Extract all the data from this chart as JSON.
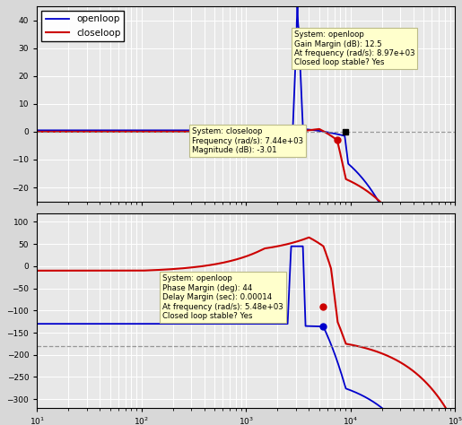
{
  "fig_width": 5.15,
  "fig_height": 4.74,
  "dpi": 100,
  "bg_color": "#d8d8d8",
  "plot_bg_color": "#e8e8e8",
  "grid_color": "#ffffff",
  "openloop_color": "#0000cc",
  "closeloop_color": "#cc0000",
  "legend_labels": [
    "openloop",
    "closeloop"
  ],
  "annotation_mag_ol": "System: openloop\nGain Margin (dB): 12.5\nAt frequency (rad/s): 8.97e+03\nClosed loop stable? Yes",
  "annotation_mag_cl": "System: closeloop\nFrequency (rad/s): 7.44e+03\nMagnitude (dB): -3.01",
  "annotation_phase": "System: openloop\nPhase Margin (deg): 44\nDelay Margin (sec): 0.00014\nAt frequency (rad/s): 5.48e+03\nClosed loop stable? Yes"
}
